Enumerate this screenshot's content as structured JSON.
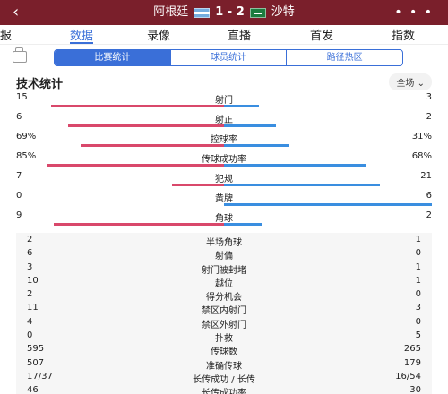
{
  "header": {
    "back_icon": "chevron-left-icon",
    "home_team": "阿根廷",
    "score": "1 - 2",
    "away_team": "沙特",
    "more": "• • •"
  },
  "tabs": [
    {
      "label": "报"
    },
    {
      "label": "数据",
      "active": true
    },
    {
      "label": "录像"
    },
    {
      "label": "直播"
    },
    {
      "label": "首发"
    },
    {
      "label": "指数"
    }
  ],
  "segments": [
    "比赛统计",
    "球员统计",
    "路径热区"
  ],
  "section": {
    "title": "技术统计",
    "range": "全场 ⌄"
  },
  "colors": {
    "home": "#d9486b",
    "away": "#3a8ee0",
    "accent": "#3a6fd8",
    "header_bg": "#7a1f2b"
  },
  "bar_stats": [
    {
      "label": "射门",
      "home": "15",
      "away": "3",
      "home_frac": 0.83,
      "away_frac": 0.17
    },
    {
      "label": "射正",
      "home": "6",
      "away": "2",
      "home_frac": 0.75,
      "away_frac": 0.25
    },
    {
      "label": "控球率",
      "home": "69%",
      "away": "31%",
      "home_frac": 0.69,
      "away_frac": 0.31
    },
    {
      "label": "传球成功率",
      "home": "85%",
      "away": "68%",
      "home_frac": 0.85,
      "away_frac": 0.68
    },
    {
      "label": "犯规",
      "home": "7",
      "away": "21",
      "home_frac": 0.25,
      "away_frac": 0.75
    },
    {
      "label": "黄牌",
      "home": "0",
      "away": "6",
      "home_frac": 0.0,
      "away_frac": 1.0
    },
    {
      "label": "角球",
      "home": "9",
      "away": "2",
      "home_frac": 0.82,
      "away_frac": 0.18
    }
  ],
  "list_stats": [
    {
      "label": "半场角球",
      "home": "2",
      "away": "1"
    },
    {
      "label": "射偏",
      "home": "6",
      "away": "0"
    },
    {
      "label": "射门被封堵",
      "home": "3",
      "away": "1"
    },
    {
      "label": "越位",
      "home": "10",
      "away": "1"
    },
    {
      "label": "得分机会",
      "home": "2",
      "away": "0"
    },
    {
      "label": "禁区内射门",
      "home": "11",
      "away": "3"
    },
    {
      "label": "禁区外射门",
      "home": "4",
      "away": "0"
    },
    {
      "label": "扑救",
      "home": "0",
      "away": "5"
    },
    {
      "label": "传球数",
      "home": "595",
      "away": "265"
    },
    {
      "label": "准确传球",
      "home": "507",
      "away": "179"
    },
    {
      "label": "长传成功 / 长传",
      "home": "17/37",
      "away": "16/54"
    },
    {
      "label": "长传成功率",
      "home": "46",
      "away": "30"
    }
  ]
}
